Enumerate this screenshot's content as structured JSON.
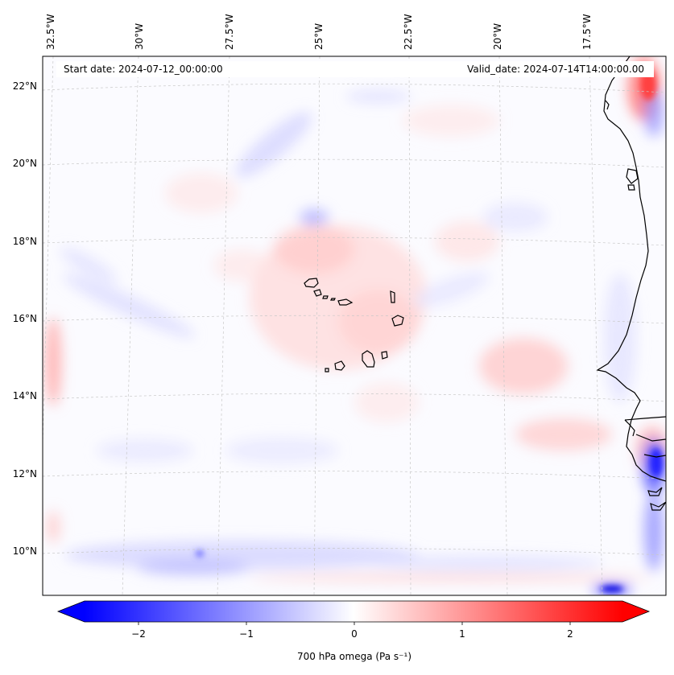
{
  "header": {
    "start_date": "Start date: 2024-07-12_00:00:00",
    "valid_date": "Valid_date: 2024-07-14T14:00:00.00"
  },
  "axes": {
    "lon_labels": [
      "32.5°W",
      "30°W",
      "27.5°W",
      "25°W",
      "22.5°W",
      "20°W",
      "17.5°W"
    ],
    "lat_labels": [
      "22°N",
      "20°N",
      "18°N",
      "16°N",
      "14°N",
      "12°N",
      "10°N"
    ]
  },
  "colorbar": {
    "ticks": [
      "−2",
      "−1",
      "0",
      "1",
      "2"
    ],
    "label": "700 hPa omega (Pa s⁻¹)",
    "min_color": "#0000ff",
    "mid_color": "#ffffff",
    "max_color": "#ff0000"
  }
}
